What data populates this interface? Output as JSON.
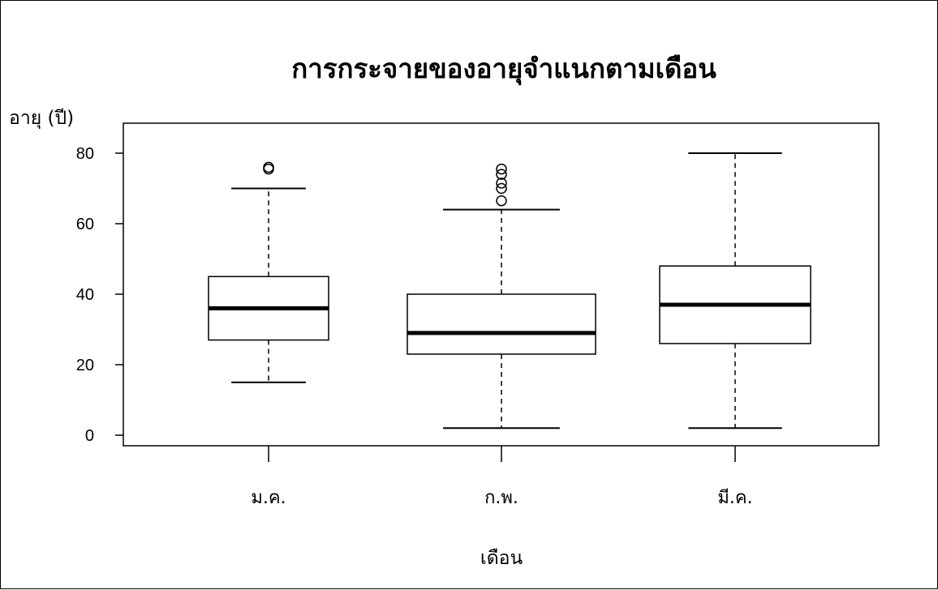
{
  "chart_data": {
    "type": "boxplot",
    "title": "การกระจายของอายุจำแนกตามเดือน",
    "ylabel": "อายุ (ปี)",
    "xlabel": "เดือน",
    "ylim": [
      0,
      82
    ],
    "yticks": [
      0,
      20,
      40,
      60,
      80
    ],
    "grid": false,
    "categories": [
      "ม.ค.",
      "ก.พ.",
      "มี.ค."
    ],
    "boxes": [
      {
        "category": "ม.ค.",
        "min": 15,
        "q1": 27,
        "median": 36,
        "q3": 45,
        "max": 70,
        "outliers": [
          75.5,
          76
        ]
      },
      {
        "category": "ก.พ.",
        "min": 2,
        "q1": 23,
        "median": 29,
        "q3": 40,
        "max": 64,
        "outliers": [
          66.5,
          70,
          71.5,
          74,
          75.5
        ]
      },
      {
        "category": "มี.ค.",
        "min": 2,
        "q1": 26,
        "median": 37,
        "q3": 48,
        "max": 80,
        "outliers": []
      }
    ]
  }
}
